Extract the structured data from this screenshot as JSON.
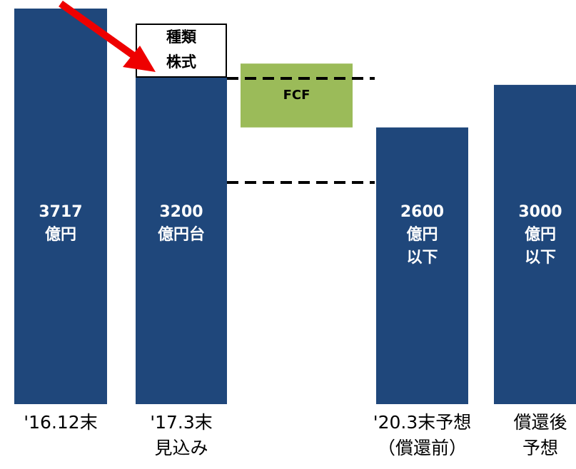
{
  "chart_data": {
    "type": "waterfall",
    "categories": [
      "'16.12末",
      "'17.3末\n見込み",
      null,
      "'20.3末予想\n（償還前）",
      "償還後\n予想"
    ],
    "values": [
      3717,
      3200,
      600,
      2600,
      3000
    ],
    "value_labels": [
      "3717\n億円",
      "3200\n億円台",
      "FCF",
      "2600\n億円\n以下",
      "3000\n億円\n以下"
    ],
    "colors": [
      "#1f477b",
      "#1f477b",
      "#9bbb59",
      "#1f477b",
      "#1f477b"
    ],
    "annotation": "種類\n株式",
    "ylim": [
      0,
      3717
    ]
  }
}
